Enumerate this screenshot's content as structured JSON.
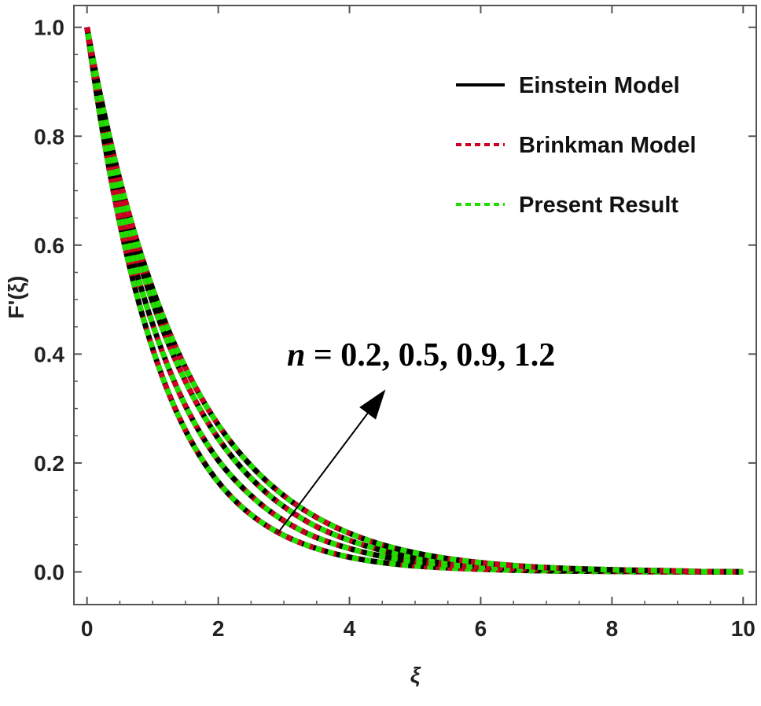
{
  "chart_data": {
    "type": "line",
    "title": "",
    "xlabel": "ξ",
    "ylabel": "F'(ξ)",
    "xlim": [
      -0.2,
      10.2
    ],
    "ylim": [
      -0.06,
      1.04
    ],
    "xticks": [
      0,
      2,
      4,
      6,
      8,
      10
    ],
    "xtick_labels": [
      "0",
      "2",
      "4",
      "6",
      "8",
      "10"
    ],
    "yticks": [
      0.0,
      0.2,
      0.4,
      0.6,
      0.8,
      1.0
    ],
    "ytick_labels": [
      "0.0",
      "0.2",
      "0.4",
      "0.6",
      "0.8",
      "1.0"
    ],
    "grid": false,
    "legend_position": "top-right",
    "series": [
      {
        "name": "Einstein Model",
        "color": "#000000",
        "dash": "solid"
      },
      {
        "name": "Brinkman Model",
        "color": "#cc0022",
        "dash": "dashed"
      },
      {
        "name": "Present Result",
        "color": "#22dd00",
        "dash": "dashed"
      }
    ],
    "curves": [
      {
        "n": 0.2,
        "x": [
          0,
          0.5,
          1,
          1.5,
          2,
          2.5,
          3,
          3.5,
          4,
          5,
          6,
          7,
          8,
          9,
          10
        ],
        "y": [
          1.0,
          0.64,
          0.41,
          0.26,
          0.165,
          0.105,
          0.067,
          0.043,
          0.027,
          0.011,
          0.005,
          0.002,
          0.001,
          0.0,
          0.0
        ]
      },
      {
        "n": 0.5,
        "x": [
          0,
          0.5,
          1,
          1.5,
          2,
          2.5,
          3,
          3.5,
          4,
          5,
          6,
          7,
          8,
          9,
          10
        ],
        "y": [
          1.0,
          0.67,
          0.455,
          0.305,
          0.205,
          0.14,
          0.094,
          0.063,
          0.043,
          0.019,
          0.009,
          0.004,
          0.002,
          0.001,
          0.0
        ]
      },
      {
        "n": 0.9,
        "x": [
          0,
          0.5,
          1,
          1.5,
          2,
          2.5,
          3,
          3.5,
          4,
          5,
          6,
          7,
          8,
          9,
          10
        ],
        "y": [
          1.0,
          0.7,
          0.495,
          0.35,
          0.245,
          0.172,
          0.12,
          0.083,
          0.058,
          0.027,
          0.013,
          0.006,
          0.003,
          0.001,
          0.0
        ]
      },
      {
        "n": 1.2,
        "x": [
          0,
          0.5,
          1,
          1.5,
          2,
          2.5,
          3,
          3.5,
          4,
          5,
          6,
          7,
          8,
          9,
          10
        ],
        "y": [
          1.0,
          0.72,
          0.52,
          0.375,
          0.27,
          0.195,
          0.14,
          0.1,
          0.071,
          0.035,
          0.017,
          0.008,
          0.004,
          0.002,
          0.0
        ]
      }
    ],
    "annotation": {
      "symbol": "n",
      "text": " =  0.2, 0.5, 0.9, 1.2",
      "arrow_from": [
        2.9,
        0.07
      ],
      "arrow_to": [
        4.55,
        0.335
      ]
    }
  }
}
